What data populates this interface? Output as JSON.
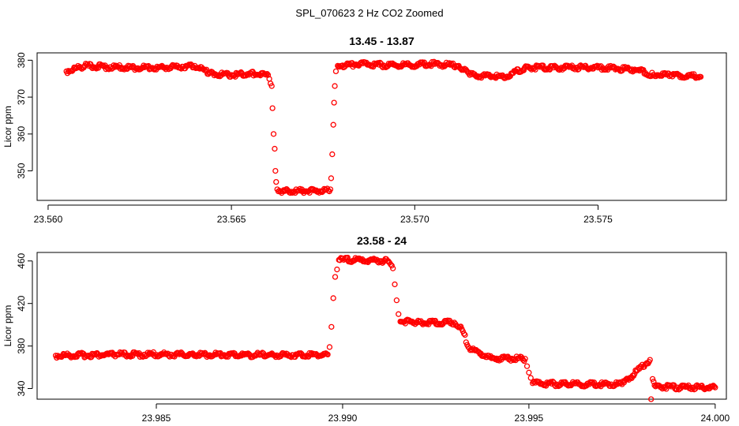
{
  "figure_title": "SPL_070623  2 Hz CO2 Zoomed",
  "colors": {
    "points": "#ff0000",
    "axis": "#000000",
    "background": "#ffffff"
  },
  "chart_data": [
    {
      "type": "scatter",
      "title": "13.45 - 13.87",
      "xlabel": "",
      "ylabel": "Licor ppm",
      "xlim": [
        23.5597,
        23.5785
      ],
      "ylim": [
        342,
        382
      ],
      "x_ticks": [
        23.56,
        23.565,
        23.57,
        23.575
      ],
      "x_tick_labels": [
        "23.560",
        "23.565",
        "23.570",
        "23.575"
      ],
      "y_ticks": [
        350,
        360,
        370,
        380
      ],
      "y_tick_labels": [
        "350",
        "360",
        "370",
        "380"
      ],
      "grid": false,
      "legend": "none",
      "marker": "open-circle",
      "series": [
        {
          "x": [
            23.5605,
            23.561,
            23.562,
            23.563,
            23.564,
            23.5644,
            23.565,
            23.5655,
            23.566,
            23.5661,
            23.56612,
            23.56615,
            23.56618,
            23.5662,
            23.56622,
            23.56625,
            23.5664,
            23.567,
            23.5675,
            23.5677,
            23.56772,
            23.56775,
            23.56778,
            23.5678,
            23.56782,
            23.56785,
            23.5679,
            23.5685,
            23.5695,
            23.5705,
            23.5712,
            23.5715,
            23.5725,
            23.573,
            23.574,
            23.575,
            23.576,
            23.5765,
            23.577,
            23.5778
          ],
          "y": [
            377,
            378.5,
            378,
            378,
            378.5,
            376.5,
            376,
            376.5,
            376,
            373,
            367,
            360,
            356,
            350,
            347,
            345,
            344.5,
            344.5,
            344.5,
            345,
            348,
            354.5,
            362.5,
            368.5,
            373,
            377,
            378.5,
            379,
            378.5,
            379,
            378.5,
            376,
            375.5,
            378,
            378,
            378,
            377.5,
            376,
            376,
            375.5
          ]
        }
      ]
    },
    {
      "type": "scatter",
      "title": "23.58 - 24",
      "xlabel": "",
      "ylabel": "Licor ppm",
      "xlim": [
        23.9818,
        24.0003
      ],
      "ylim": [
        330,
        468
      ],
      "x_ticks": [
        23.985,
        23.99,
        23.995,
        24.0
      ],
      "x_tick_labels": [
        "23.985",
        "23.990",
        "23.995",
        "24.000"
      ],
      "y_ticks": [
        340,
        380,
        420,
        460
      ],
      "y_tick_labels": [
        "340",
        "380",
        "420",
        "460"
      ],
      "grid": false,
      "legend": "none",
      "marker": "open-circle",
      "series": [
        {
          "x": [
            23.9823,
            23.984,
            23.986,
            23.988,
            23.9896,
            23.98965,
            23.9897,
            23.98975,
            23.9898,
            23.98985,
            23.9899,
            23.9905,
            23.9912,
            23.99135,
            23.9914,
            23.99145,
            23.9915,
            23.99155,
            23.992,
            23.993,
            23.9932,
            23.9934,
            23.994,
            23.9949,
            23.99495,
            23.995,
            23.99505,
            23.9951,
            23.996,
            23.9975,
            23.99825,
            23.99828,
            23.99832,
            23.9984,
            23.999,
            24.0
          ],
          "y": [
            371,
            372,
            372,
            371.5,
            372,
            379,
            398,
            425,
            445,
            452,
            461,
            461,
            460,
            453,
            438,
            423,
            410,
            403,
            402,
            402,
            396,
            378,
            368.5,
            368,
            361,
            355,
            350,
            345,
            344,
            344,
            367,
            330,
            349,
            342,
            341,
            341
          ]
        }
      ]
    }
  ]
}
